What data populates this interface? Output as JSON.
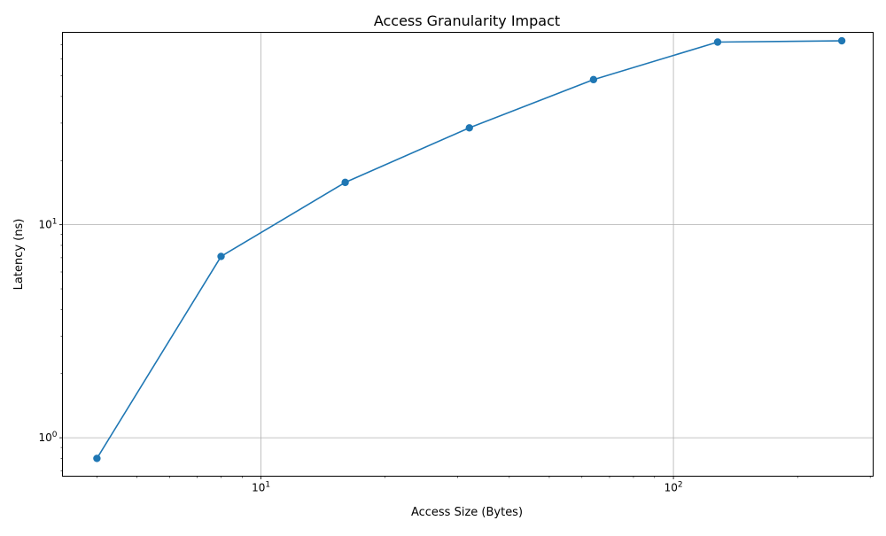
{
  "chart_data": {
    "type": "line",
    "title": "Access Granularity Impact",
    "xlabel": "Access Size (Bytes)",
    "ylabel": "Latency (ns)",
    "x_scale": "log",
    "y_scale": "log",
    "xlim": [
      3.3,
      305
    ],
    "ylim": [
      0.66,
      80
    ],
    "grid": true,
    "x_ticks": [
      {
        "value": 10,
        "base": "10",
        "exp": "1"
      },
      {
        "value": 100,
        "base": "10",
        "exp": "2"
      }
    ],
    "y_ticks": [
      {
        "value": 1,
        "base": "10",
        "exp": "0"
      },
      {
        "value": 10,
        "base": "10",
        "exp": "1"
      }
    ],
    "series": [
      {
        "color": "#1f77b4",
        "marker": "circle",
        "x": [
          4,
          8,
          16,
          32,
          64,
          128,
          256
        ],
        "y": [
          0.8,
          7.1,
          15.8,
          28.5,
          48,
          72,
          73
        ]
      }
    ]
  }
}
